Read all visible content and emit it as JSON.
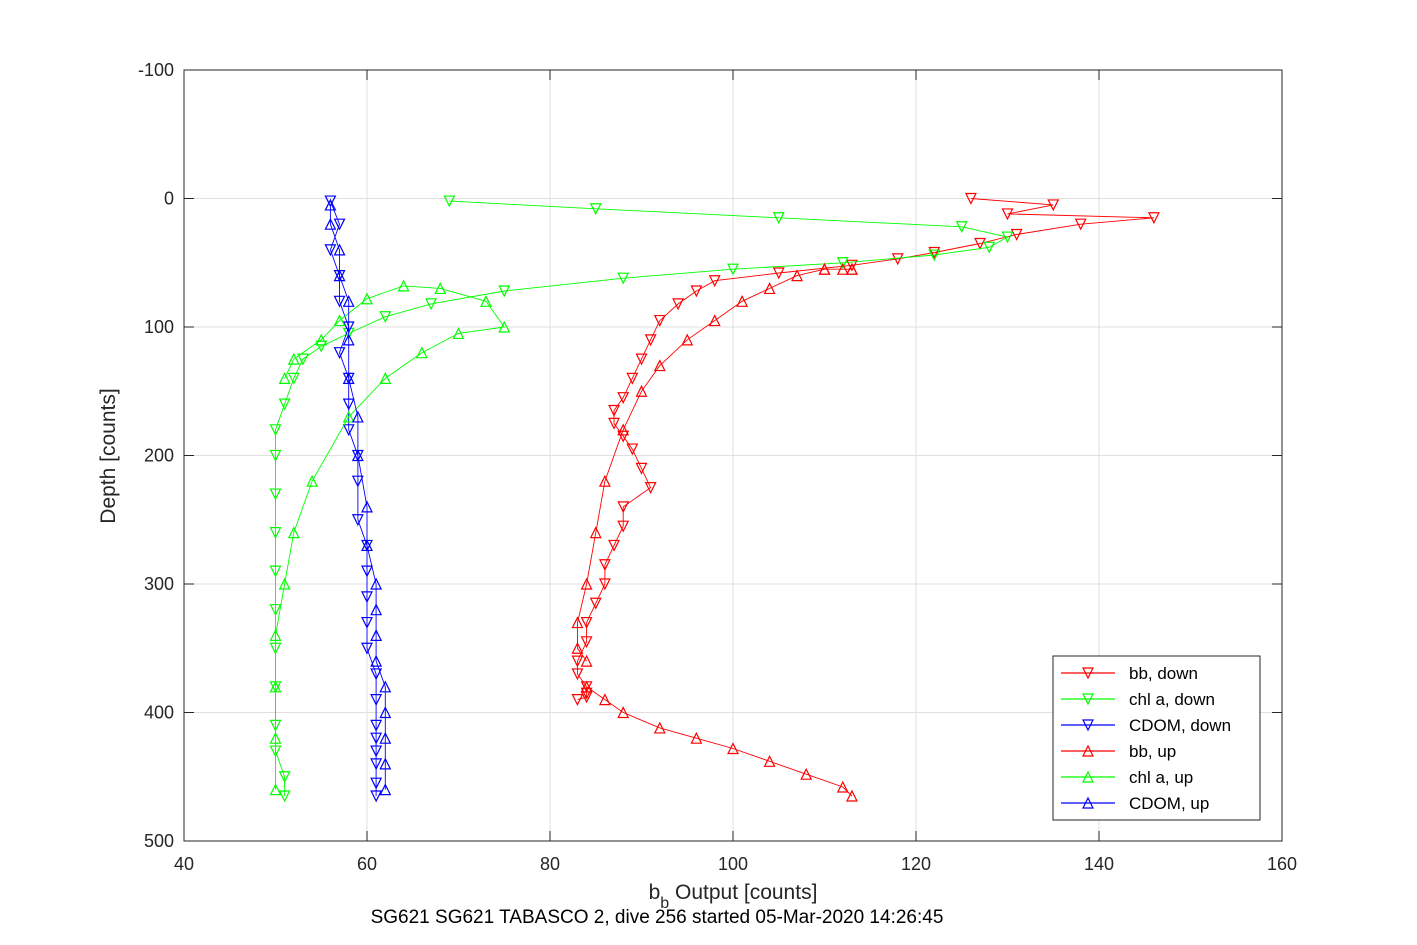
{
  "chart_data": {
    "type": "scatter",
    "title": "",
    "xlabel_main": "b",
    "xlabel_sub": "b",
    "xlabel_rest": " Output [counts]",
    "ylabel": "Depth [counts]",
    "footer": "SG621 SG621 TABASCO 2, dive 256 started 05-Mar-2020 14:26:45",
    "xlim": [
      40,
      160
    ],
    "ylim": [
      -100,
      500
    ],
    "y_reversed": true,
    "grid": true,
    "legend_position": "bottom-right",
    "xticks": [
      40,
      60,
      80,
      100,
      120,
      140,
      160
    ],
    "yticks": [
      -100,
      0,
      100,
      200,
      300,
      400,
      500
    ],
    "series": [
      {
        "name": "bb, down",
        "color": "#ff0000",
        "marker": "triangle-down",
        "line": true,
        "x": [
          126,
          135,
          130,
          146,
          138,
          131,
          127,
          122,
          118,
          113,
          105,
          98,
          96,
          94,
          92,
          91,
          90,
          89,
          88,
          87,
          87,
          88,
          89,
          90,
          91,
          88,
          88,
          87,
          86,
          86,
          85,
          84,
          84,
          83,
          83,
          84,
          84,
          84,
          83
        ],
        "y": [
          0,
          5,
          12,
          15,
          20,
          28,
          35,
          42,
          47,
          52,
          58,
          64,
          72,
          82,
          95,
          110,
          125,
          140,
          155,
          165,
          175,
          185,
          195,
          210,
          225,
          240,
          255,
          270,
          285,
          300,
          315,
          330,
          345,
          360,
          370,
          380,
          385,
          388,
          390
        ]
      },
      {
        "name": "chl a, down",
        "color": "#00ff00",
        "marker": "triangle-down",
        "line": true,
        "x": [
          69,
          85,
          105,
          125,
          130,
          128,
          122,
          112,
          100,
          88,
          75,
          67,
          62,
          58,
          55,
          53,
          52,
          51,
          50,
          50,
          50,
          50,
          50,
          50,
          50,
          50,
          50,
          50,
          51,
          51
        ],
        "y": [
          2,
          8,
          15,
          22,
          30,
          38,
          44,
          50,
          55,
          62,
          72,
          82,
          92,
          105,
          115,
          125,
          140,
          160,
          180,
          200,
          230,
          260,
          290,
          320,
          350,
          380,
          410,
          430,
          450,
          465
        ]
      },
      {
        "name": "CDOM, down",
        "color": "#0000ff",
        "marker": "triangle-down",
        "line": true,
        "x": [
          56,
          57,
          56,
          57,
          57,
          58,
          57,
          58,
          58,
          58,
          59,
          59,
          59,
          60,
          60,
          60,
          60,
          60,
          61,
          61,
          61,
          61,
          61,
          61,
          61,
          61
        ],
        "y": [
          2,
          20,
          40,
          60,
          80,
          100,
          120,
          140,
          160,
          180,
          200,
          220,
          250,
          270,
          290,
          310,
          330,
          350,
          370,
          390,
          410,
          420,
          430,
          440,
          455,
          465
        ]
      },
      {
        "name": "bb, up",
        "color": "#ff0000",
        "marker": "triangle-up",
        "line": true,
        "x": [
          84,
          83,
          83,
          84,
          85,
          86,
          88,
          90,
          92,
          95,
          98,
          101,
          104,
          107,
          110,
          113,
          113,
          112,
          110
        ],
        "y": [
          360,
          350,
          330,
          300,
          260,
          220,
          180,
          150,
          130,
          110,
          95,
          80,
          70,
          60,
          55,
          55,
          55,
          55,
          55
        ],
        "x2": [
          84,
          86,
          88,
          92,
          96,
          100,
          104,
          108,
          112,
          113
        ],
        "y2": [
          380,
          390,
          400,
          412,
          420,
          428,
          438,
          448,
          458,
          465
        ]
      },
      {
        "name": "chl a, up",
        "color": "#00ff00",
        "marker": "triangle-up",
        "line": true,
        "x": [
          50,
          50,
          50,
          50,
          51,
          52,
          54,
          58,
          62,
          66,
          70,
          75,
          73,
          68,
          64,
          60,
          57,
          55,
          52,
          51
        ],
        "y": [
          460,
          420,
          380,
          340,
          300,
          260,
          220,
          170,
          140,
          120,
          105,
          100,
          80,
          70,
          68,
          78,
          95,
          110,
          125,
          140
        ]
      },
      {
        "name": "CDOM, up",
        "color": "#0000ff",
        "marker": "triangle-up",
        "line": true,
        "x": [
          62,
          62,
          62,
          62,
          62,
          61,
          61,
          61,
          61,
          60,
          60,
          59,
          59,
          58,
          58,
          58,
          57,
          57,
          56,
          56
        ],
        "y": [
          460,
          440,
          420,
          400,
          380,
          360,
          340,
          320,
          300,
          270,
          240,
          200,
          170,
          140,
          110,
          80,
          60,
          40,
          20,
          5
        ]
      }
    ]
  }
}
